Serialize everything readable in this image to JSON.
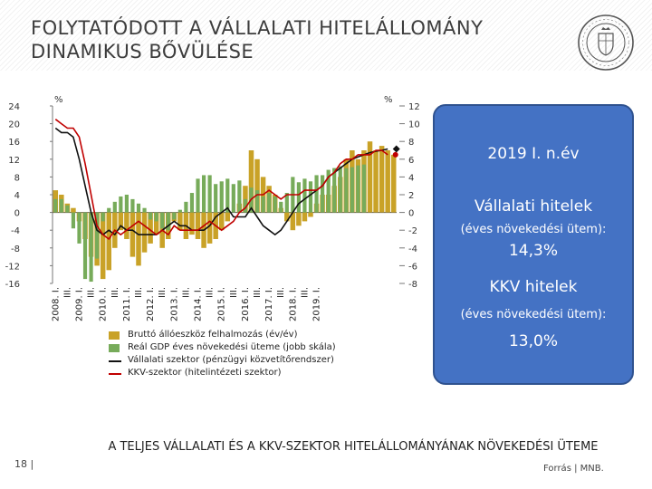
{
  "slide": {
    "title_line1": "FOLYTATÓDOTT A VÁLLALATI HITELÁLLOMÁNY",
    "title_line2": "DINAMIKUS BŐVÜLÉSE",
    "page_number": "18 |",
    "footer": "A TELJES VÁLLALATI ÉS A KKV-SZEKTOR HITELÁLLOMÁNYÁNAK NÖVEKEDÉSI ÜTEME",
    "source": "Forrás | MNB."
  },
  "infobox": {
    "period": "2019 I. n.év",
    "corp_heading": "Vállalati hitelek",
    "corp_sub": "(éves növekedési ütem):",
    "corp_value": "14,3%",
    "sme_heading": "KKV hitelek",
    "sme_sub": "(éves növekedési ütem):",
    "sme_value": "13,0%"
  },
  "chart_data": {
    "type": "bar",
    "left_unit": "%",
    "right_unit": "%",
    "left_axis": {
      "min": -16,
      "max": 24,
      "ticks": [
        "24",
        "20",
        "16",
        "12",
        "8",
        "4",
        "0",
        "-4",
        "-8",
        "-12",
        "-16"
      ]
    },
    "right_axis": {
      "min": -8,
      "max": 12,
      "ticks": [
        "12",
        "10",
        "8",
        "6",
        "4",
        "2",
        "0",
        "-2",
        "-4",
        "-6",
        "-8"
      ]
    },
    "x_labels": [
      "2008. I.",
      "2009. I.",
      "2010. I.",
      "2011. I.",
      "2012. I.",
      "2013. I.",
      "2014. I.",
      "2015. I.",
      "2016. I.",
      "2017. I.",
      "2018. I.",
      "2019. I."
    ],
    "quarter_labels": [
      "III.",
      "III.",
      "III.",
      "III.",
      "III.",
      "III.",
      "III.",
      "III.",
      "III.",
      "III.",
      "III."
    ],
    "colors": {
      "gfcf": "#c9a227",
      "gdp": "#77ab5a",
      "corp": "#111111",
      "sme": "#c00000"
    },
    "series": [
      {
        "name": "Bruttó állóeszköz felhalmozás (év/év)",
        "axis": "left",
        "kind": "bar",
        "values": [
          5,
          4,
          2,
          1,
          -2,
          -6,
          -10,
          -12,
          -15,
          -13,
          -8,
          -4,
          -6,
          -10,
          -12,
          -9,
          -7,
          -5,
          -8,
          -6,
          -2,
          -4,
          -6,
          -5,
          -6,
          -8,
          -7,
          -6,
          -4,
          -2,
          0,
          2,
          6,
          14,
          12,
          8,
          6,
          4,
          1,
          -2,
          -4,
          -3,
          -2,
          -1,
          2,
          4,
          4,
          6,
          8,
          12,
          14,
          12,
          14,
          16,
          14,
          15,
          14,
          13
        ]
      },
      {
        "name": "Reál GDP éves növekedési üteme (jobb skála)",
        "axis": "right",
        "kind": "bar",
        "values": [
          1.5,
          1.5,
          0.8,
          -1.8,
          -3.5,
          -7.5,
          -7.8,
          -5.2,
          -1.0,
          0.5,
          1.2,
          1.8,
          2.0,
          1.5,
          1.0,
          0.5,
          -0.8,
          -1.0,
          -1.8,
          -2.0,
          -0.8,
          0.3,
          1.2,
          2.2,
          3.8,
          4.2,
          4.2,
          3.2,
          3.5,
          3.8,
          3.2,
          3.6,
          1.5,
          2.8,
          2.5,
          1.8,
          2.2,
          1.8,
          1.2,
          2.2,
          4.0,
          3.4,
          3.8,
          3.5,
          4.2,
          4.2,
          4.8,
          5.0,
          5.2,
          5.0,
          5.1,
          5.3,
          5.4
        ]
      },
      {
        "name": "Vállalati szektor (pénzügyi közvetítőrendszer)",
        "axis": "left",
        "kind": "line",
        "values": [
          19,
          18,
          18,
          17,
          12,
          6,
          0,
          -4,
          -5,
          -4,
          -5,
          -3,
          -4,
          -4,
          -5,
          -5,
          -5,
          -5,
          -4,
          -3,
          -2,
          -3,
          -3,
          -4,
          -4,
          -4,
          -3,
          -1,
          0,
          1,
          -1,
          -1,
          -1,
          1,
          -1,
          -3,
          -4,
          -5,
          -4,
          -2,
          0,
          2,
          3,
          4,
          5,
          6,
          8,
          9,
          10,
          11,
          12,
          12.5,
          13,
          13.5,
          13.8,
          14,
          14.3
        ]
      },
      {
        "name": "KKV-szektor (hitelintézeti szektor)",
        "axis": "left",
        "kind": "line",
        "values": [
          21,
          20,
          19,
          19,
          17,
          11,
          4,
          -3,
          -5,
          -6,
          -4,
          -5,
          -4,
          -3,
          -2,
          -3,
          -4,
          -5,
          -4,
          -5,
          -3,
          -4,
          -4,
          -4,
          -4,
          -3,
          -2,
          -3,
          -4,
          -3,
          -2,
          0,
          1,
          3,
          4,
          4,
          5,
          4,
          3,
          4,
          4,
          4,
          5,
          5,
          5,
          6,
          8,
          9,
          11,
          12,
          12,
          13,
          13,
          13,
          14,
          14,
          13
        ]
      }
    ],
    "markers": [
      {
        "series": "Vállalati szektor (pénzügyi közvetítőrendszer)",
        "value": 14.3,
        "shape": "diamond"
      },
      {
        "series": "KKV-szektor (hitelintézeti szektor)",
        "value": 13.0,
        "shape": "circle"
      }
    ]
  }
}
